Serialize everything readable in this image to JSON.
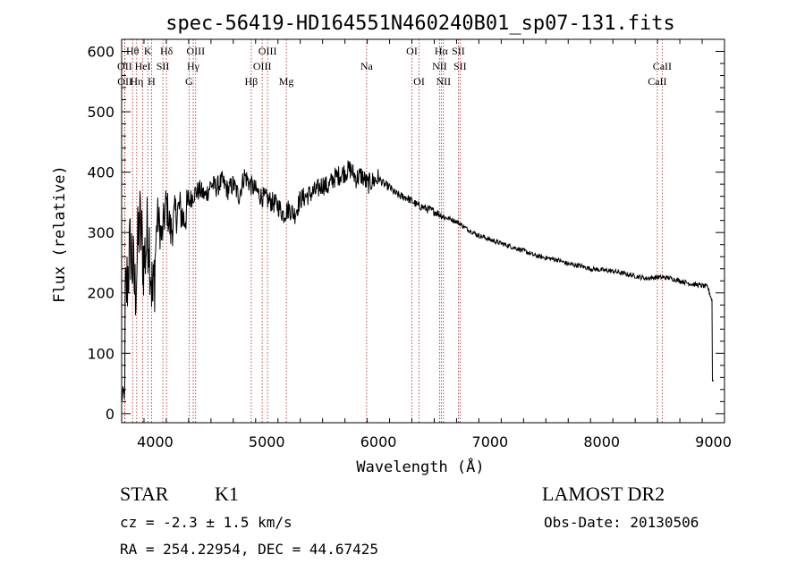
{
  "chart_data": {
    "type": "line",
    "title": "spec-56419-HD164551N460240B01_sp07-131.fits",
    "xlabel": "Wavelength (Å)",
    "ylabel": "Flux (relative)",
    "xlim": [
      3700,
      9100
    ],
    "ylim": [
      -15,
      620
    ],
    "x_ticks": [
      4000,
      5000,
      6000,
      7000,
      8000,
      9000
    ],
    "x_tick_labels": [
      "4000",
      "5000",
      "6000",
      "7000",
      "8000",
      "9000"
    ],
    "y_ticks": [
      0,
      100,
      200,
      300,
      400,
      500,
      600
    ],
    "y_tick_labels": [
      "0",
      "100",
      "200",
      "300",
      "400",
      "500",
      "600"
    ],
    "line_color": "#000000",
    "marker_color": "#b22222",
    "series": [
      {
        "name": "spectrum",
        "x": [
          3700,
          3740,
          3780,
          3820,
          3860,
          3900,
          3940,
          3980,
          4020,
          4060,
          4100,
          4140,
          4180,
          4220,
          4260,
          4300,
          4350,
          4400,
          4450,
          4500,
          4550,
          4600,
          4650,
          4700,
          4750,
          4800,
          4850,
          4900,
          4950,
          5000,
          5050,
          5100,
          5150,
          5200,
          5250,
          5300,
          5350,
          5400,
          5450,
          5500,
          5550,
          5600,
          5650,
          5700,
          5750,
          5800,
          5850,
          5900,
          5950,
          6000,
          6050,
          6100,
          6150,
          6200,
          6250,
          6300,
          6350,
          6400,
          6450,
          6500,
          6550,
          6600,
          6650,
          6700,
          6750,
          6800,
          6850,
          6900,
          6950,
          7000,
          7100,
          7200,
          7300,
          7400,
          7500,
          7600,
          7700,
          7800,
          7900,
          8000,
          8100,
          8200,
          8300,
          8400,
          8500,
          8600,
          8700,
          8800,
          8900,
          8950,
          9000
        ],
        "y": [
          130,
          200,
          280,
          200,
          320,
          250,
          310,
          180,
          330,
          290,
          350,
          300,
          330,
          340,
          320,
          350,
          365,
          370,
          360,
          380,
          375,
          385,
          370,
          380,
          360,
          395,
          380,
          370,
          360,
          355,
          350,
          345,
          330,
          340,
          330,
          355,
          360,
          365,
          370,
          380,
          375,
          390,
          395,
          400,
          405,
          390,
          395,
          380,
          385,
          390,
          380,
          375,
          365,
          360,
          358,
          352,
          345,
          342,
          338,
          335,
          330,
          325,
          322,
          318,
          312,
          305,
          300,
          295,
          292,
          288,
          282,
          276,
          270,
          262,
          258,
          255,
          248,
          245,
          240,
          238,
          236,
          232,
          228,
          224,
          226,
          225,
          220,
          215,
          212,
          210,
          180
        ]
      }
    ],
    "spectral_lines": [
      {
        "name": "OII",
        "wavelength": 3727,
        "row": 2
      },
      {
        "name": "OII",
        "wavelength": 3729,
        "row": 3
      },
      {
        "name": "Hθ",
        "wavelength": 3798,
        "row": 1
      },
      {
        "name": "Hη",
        "wavelength": 3835,
        "row": 3
      },
      {
        "name": "HeI",
        "wavelength": 3889,
        "row": 2
      },
      {
        "name": "K",
        "wavelength": 3934,
        "row": 1
      },
      {
        "name": "H",
        "wavelength": 3968,
        "row": 3
      },
      {
        "name": "SII",
        "wavelength": 4069,
        "row": 2
      },
      {
        "name": "Hδ",
        "wavelength": 4102,
        "row": 1
      },
      {
        "name": "G",
        "wavelength": 4304,
        "row": 3
      },
      {
        "name": "Hγ",
        "wavelength": 4341,
        "row": 2
      },
      {
        "name": "OIII",
        "wavelength": 4363,
        "row": 1
      },
      {
        "name": "Hβ",
        "wavelength": 4861,
        "row": 3
      },
      {
        "name": "OIII",
        "wavelength": 4959,
        "row": 2
      },
      {
        "name": "OIII",
        "wavelength": 5007,
        "row": 1
      },
      {
        "name": "Mg",
        "wavelength": 5175,
        "row": 3
      },
      {
        "name": "Na",
        "wavelength": 5894,
        "row": 2
      },
      {
        "name": "OI",
        "wavelength": 6300,
        "row": 1
      },
      {
        "name": "OI",
        "wavelength": 6364,
        "row": 3
      },
      {
        "name": "NII",
        "wavelength": 6548,
        "row": 2
      },
      {
        "name": "Hα",
        "wavelength": 6563,
        "row": 1
      },
      {
        "name": "NII",
        "wavelength": 6583,
        "row": 3
      },
      {
        "name": "SII",
        "wavelength": 6716,
        "row": 1
      },
      {
        "name": "SII",
        "wavelength": 6731,
        "row": 2
      },
      {
        "name": "CaII",
        "wavelength": 8498,
        "row": 3
      },
      {
        "name": "CaII",
        "wavelength": 8542,
        "row": 2
      }
    ]
  },
  "info": {
    "class": "STAR",
    "subclass": "K1",
    "cz": "cz = -2.3 ± 1.5 km/s",
    "coords": "RA = 254.22954, DEC =  44.67425",
    "survey": "LAMOST DR2",
    "obs_date": "Obs-Date: 20130506"
  }
}
